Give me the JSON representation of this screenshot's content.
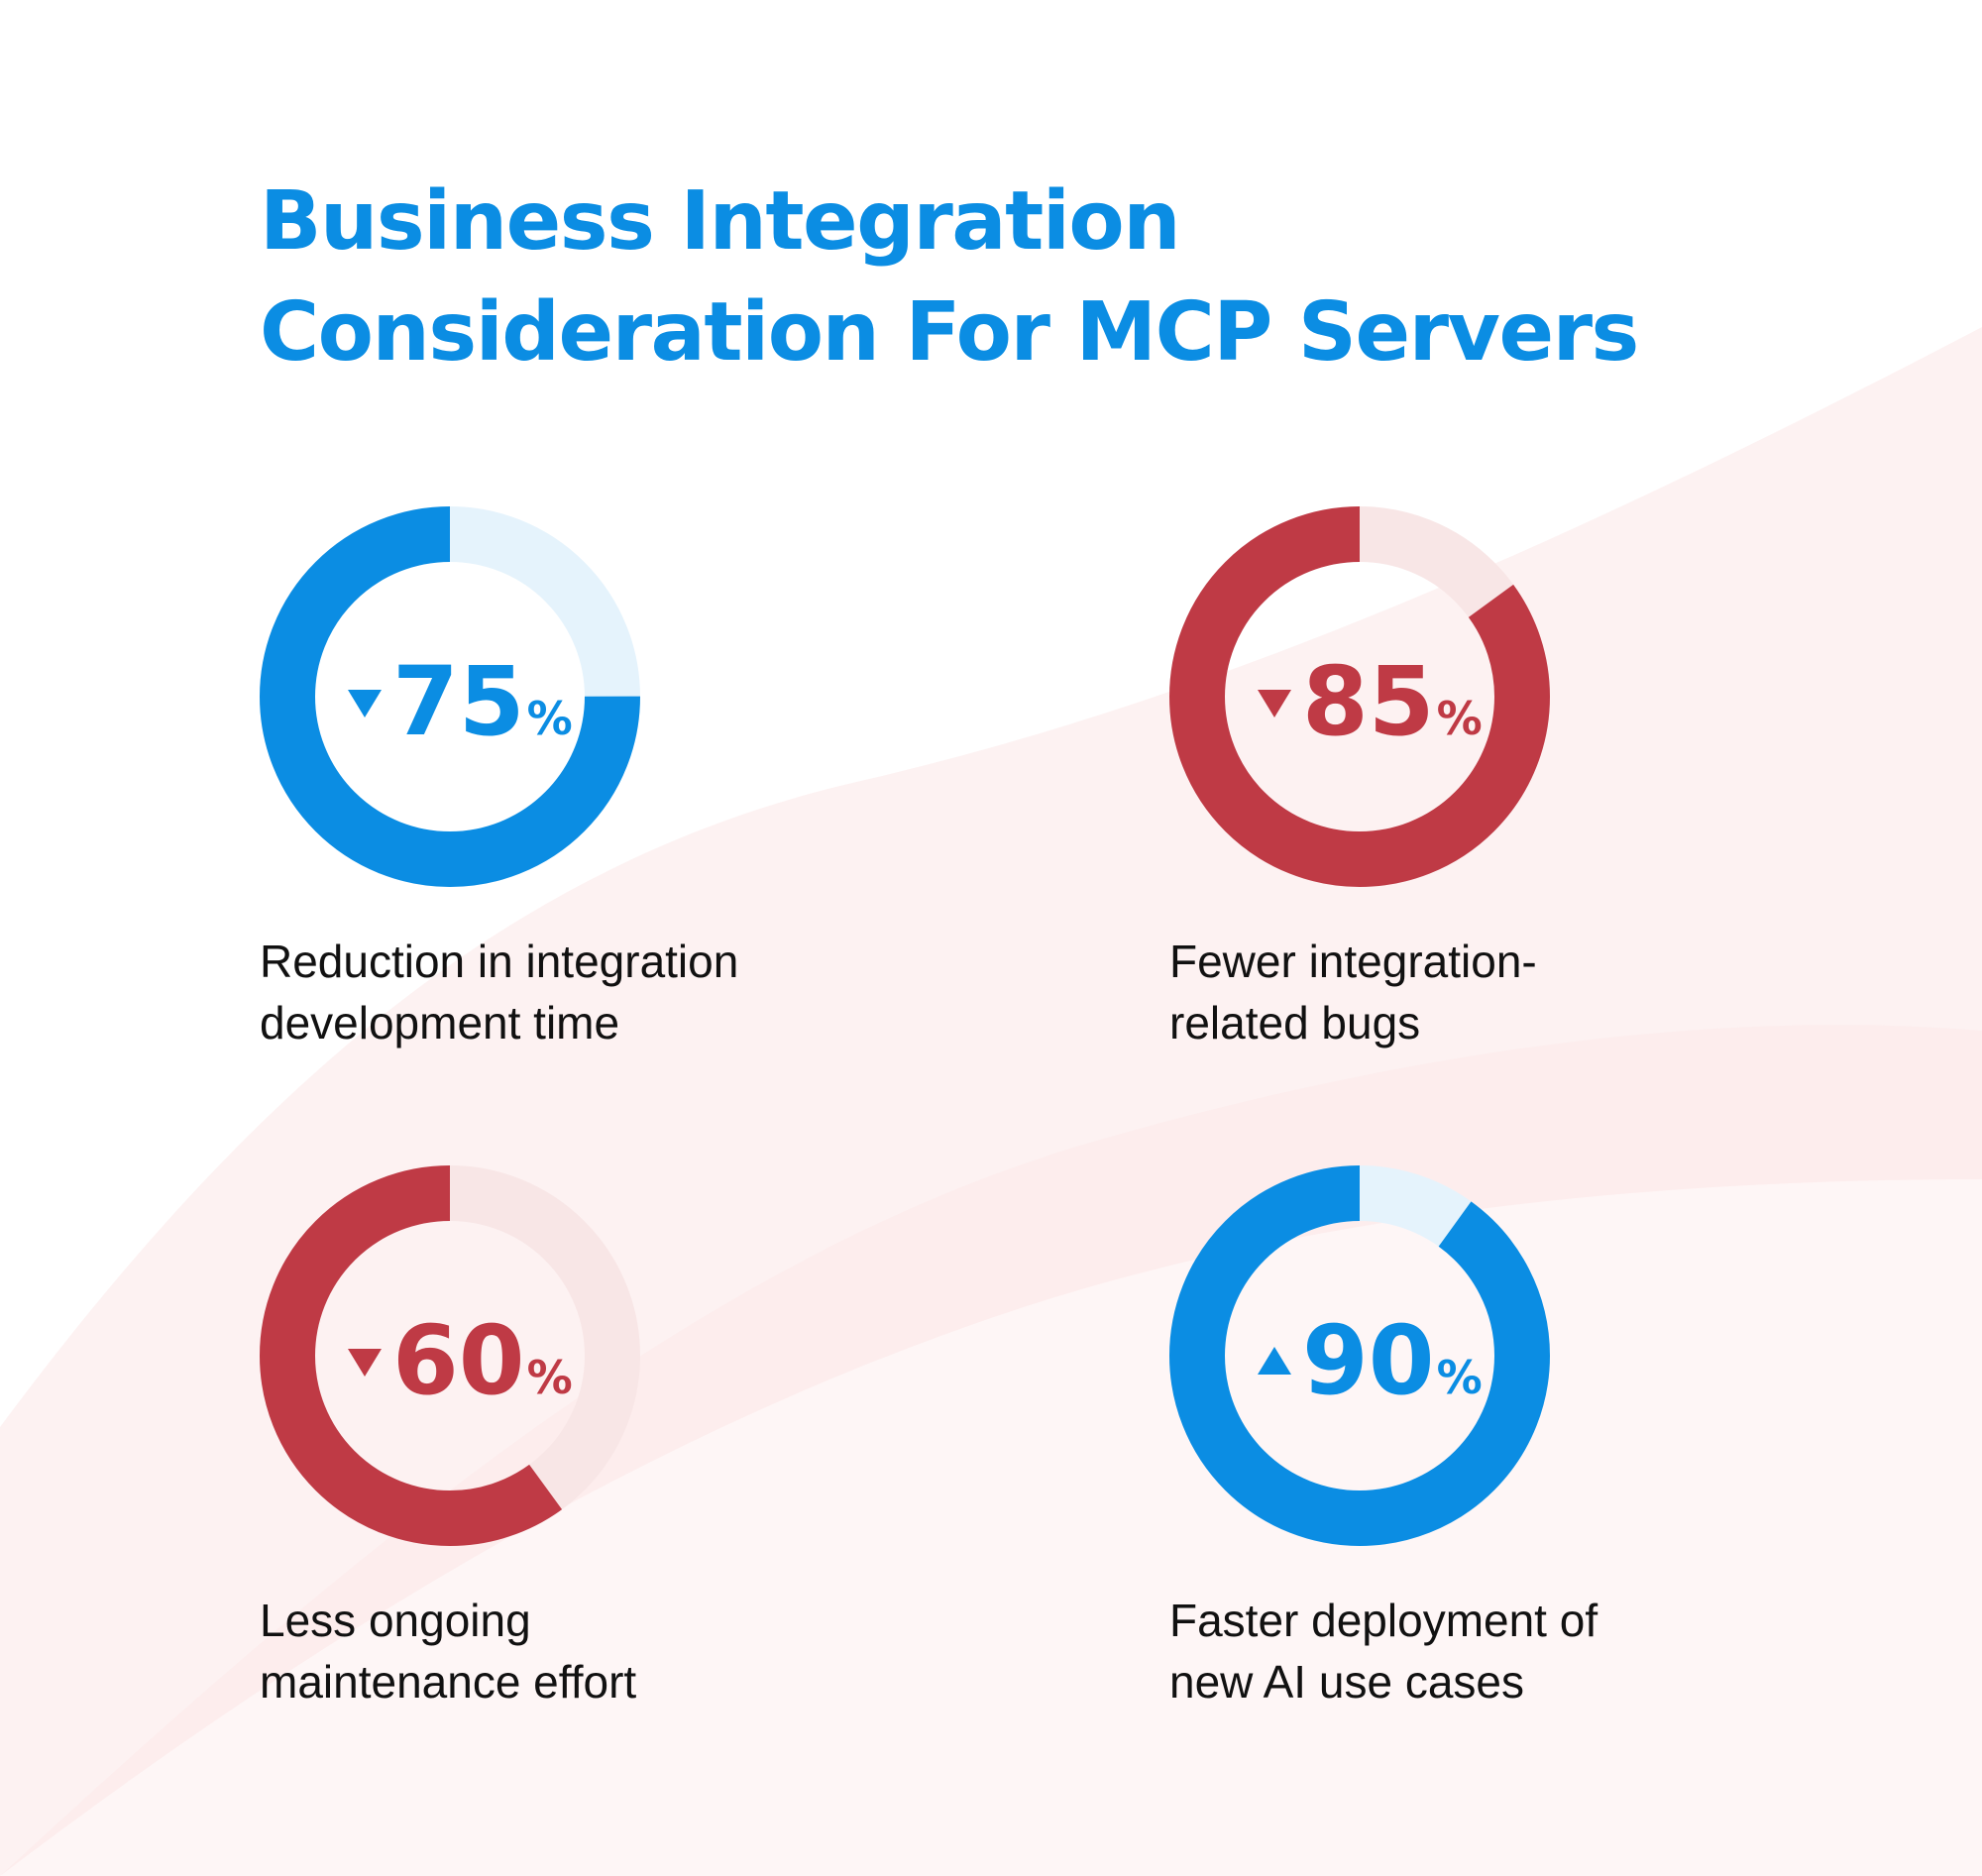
{
  "title": {
    "lines": [
      "Business Integration",
      "Consideration For MCP Servers"
    ]
  },
  "colors": {
    "title": "#0b8de3",
    "blue": "#0b8de3",
    "blue_track": "#e5f3fc",
    "red": "#bf3a45",
    "red_track": "#f8e6e6",
    "caption": "#111111",
    "wave": "#fdeeee"
  },
  "chart_data": [
    {
      "type": "pie",
      "variant": "donut",
      "value": 75,
      "unit": "%",
      "direction": "down",
      "direction_icon": "triangle-down-icon",
      "color": "blue",
      "caption_lines": [
        "Reduction in integration",
        "development time"
      ]
    },
    {
      "type": "pie",
      "variant": "donut",
      "value": 85,
      "unit": "%",
      "direction": "down",
      "direction_icon": "triangle-down-icon",
      "color": "red",
      "caption_lines": [
        "Fewer integration-",
        "related bugs"
      ]
    },
    {
      "type": "pie",
      "variant": "donut",
      "value": 60,
      "unit": "%",
      "direction": "down",
      "direction_icon": "triangle-down-icon",
      "color": "red",
      "caption_lines": [
        "Less ongoing",
        "maintenance effort"
      ]
    },
    {
      "type": "pie",
      "variant": "donut",
      "value": 90,
      "unit": "%",
      "direction": "up",
      "direction_icon": "triangle-up-icon",
      "color": "blue",
      "caption_lines": [
        "Faster deployment of",
        "new AI use cases"
      ]
    }
  ]
}
